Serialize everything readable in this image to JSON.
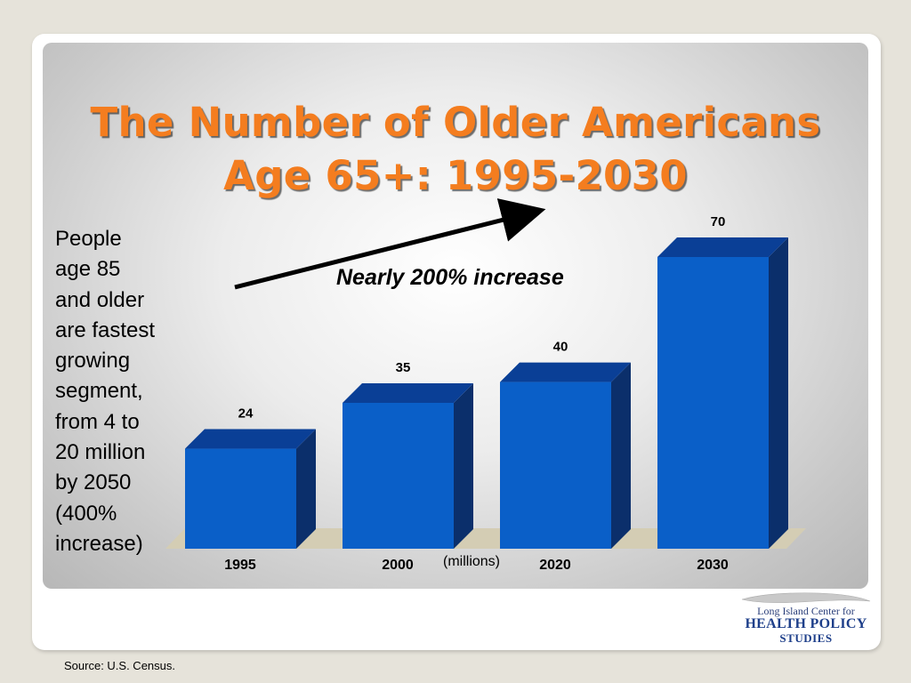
{
  "slide": {
    "title_lines": [
      "The Number of Older Americans",
      "Age 65+: 1995-2030"
    ],
    "side_note_lines": [
      "People",
      "age 85",
      "and older",
      "are fastest",
      "growing",
      "segment,",
      "from 4 to",
      "20 million",
      "by 2050",
      "(400%",
      "increase)"
    ],
    "increase_label": "Nearly 200% increase",
    "source": "Source: U.S. Census.",
    "logo": {
      "line1": "Long Island Center for",
      "line2": "HEALTH POLICY",
      "line3": "STUDIES"
    }
  },
  "chart_data": {
    "type": "bar",
    "categories": [
      "1995",
      "2000",
      "2020",
      "2030"
    ],
    "values": [
      24,
      35,
      40,
      70
    ],
    "units_label": "(millions)",
    "bar_color": "#0a5fc8",
    "ylim": [
      0,
      70
    ],
    "grid": false
  }
}
